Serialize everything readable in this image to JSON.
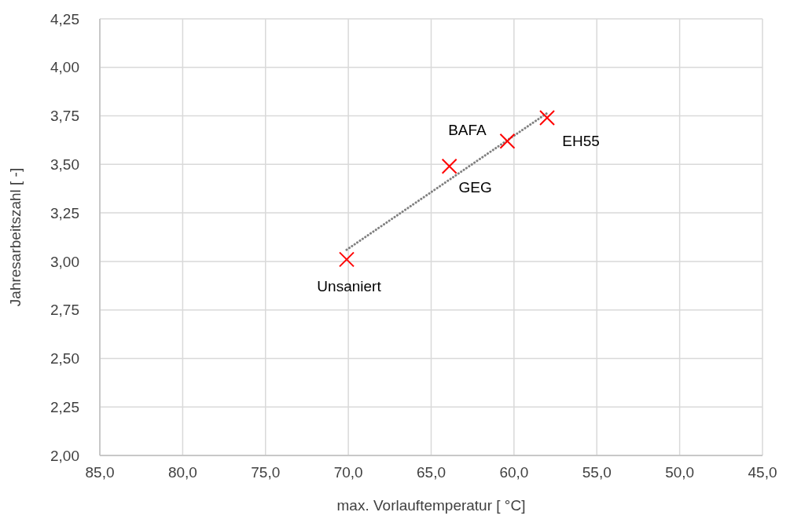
{
  "chart_data": {
    "type": "scatter",
    "xlabel": "max. Vorlauftemperatur [ °C]",
    "ylabel": "Jahresarbeitszahl [ -]",
    "xlim": [
      85,
      45
    ],
    "ylim": [
      2,
      4.25
    ],
    "xticks": [
      {
        "value": 85,
        "label": "85,0"
      },
      {
        "value": 80,
        "label": "80,0"
      },
      {
        "value": 75,
        "label": "75,0"
      },
      {
        "value": 70,
        "label": "70,0"
      },
      {
        "value": 65,
        "label": "65,0"
      },
      {
        "value": 60,
        "label": "60,0"
      },
      {
        "value": 55,
        "label": "55,0"
      },
      {
        "value": 50,
        "label": "50,0"
      },
      {
        "value": 45,
        "label": "45,0"
      }
    ],
    "yticks": [
      {
        "value": 2,
        "label": "2,00"
      },
      {
        "value": 2.25,
        "label": "2,25"
      },
      {
        "value": 2.5,
        "label": "2,50"
      },
      {
        "value": 2.75,
        "label": "2,75"
      },
      {
        "value": 3,
        "label": "3,00"
      },
      {
        "value": 3.25,
        "label": "3,25"
      },
      {
        "value": 3.5,
        "label": "3,50"
      },
      {
        "value": 3.75,
        "label": "3,75"
      },
      {
        "value": 4,
        "label": "4,00"
      },
      {
        "value": 4.25,
        "label": "4,25"
      }
    ],
    "grid": true,
    "series": [
      {
        "type": "line",
        "color": "#808080",
        "line_style": "dotted",
        "marker": "none",
        "x": [
          70.1,
          57.9
        ],
        "values": [
          3.06,
          3.77
        ]
      },
      {
        "color": "#ff0000",
        "marker": "cross",
        "x": [
          70.1,
          63.9,
          60.4,
          58.0
        ],
        "values": [
          3.01,
          3.49,
          3.62,
          3.74
        ]
      }
    ],
    "annotations": [
      {
        "text": "Unsaniert",
        "x": 70.1,
        "y": 3.01
      },
      {
        "text": "GEG",
        "x": 63.9,
        "y": 3.49
      },
      {
        "text": "BAFA",
        "x": 60.4,
        "y": 3.62
      },
      {
        "text": "EH55",
        "x": 58.0,
        "y": 3.74
      }
    ]
  }
}
